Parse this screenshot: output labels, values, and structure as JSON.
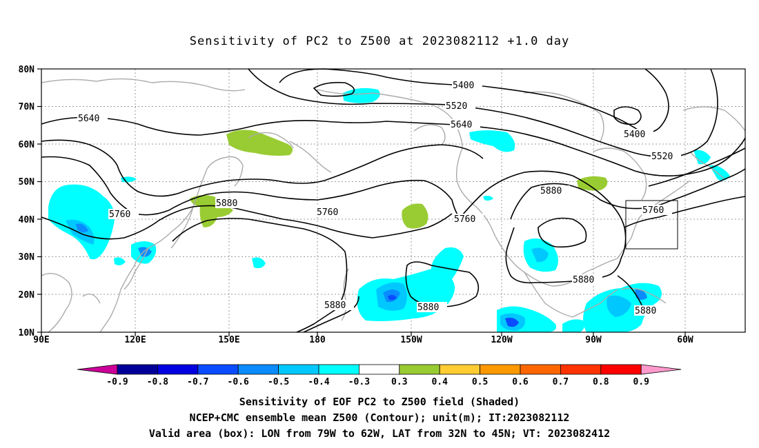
{
  "title": "Sensitivity of PC2 to Z500 at 2023082112 +1.0 day",
  "axes": {
    "lat_labels": [
      "80N",
      "70N",
      "60N",
      "50N",
      "40N",
      "30N",
      "20N",
      "10N"
    ],
    "lon_labels": [
      "90E",
      "120E",
      "150E",
      "180",
      "150W",
      "120W",
      "90W",
      "60W"
    ]
  },
  "contour_labels": [
    "5400",
    "5520",
    "5640",
    "5400",
    "5520",
    "5640",
    "5760",
    "5880",
    "5760",
    "5760",
    "5880",
    "5760",
    "5880",
    "5880",
    "5880",
    "5880"
  ],
  "colorbar": {
    "labels": [
      "-0.9",
      "-0.8",
      "-0.7",
      "-0.6",
      "-0.5",
      "-0.4",
      "-0.3",
      "0.3",
      "0.4",
      "0.5",
      "0.6",
      "0.7",
      "0.8",
      "0.9"
    ],
    "colors": [
      "#cc0099",
      "#000099",
      "#0000e0",
      "#0a4cff",
      "#0a8cff",
      "#00c8ff",
      "#00ffff",
      "#ffffff",
      "#99cc33",
      "#ffcc33",
      "#ff9900",
      "#ff6600",
      "#ff3300",
      "#ff0000",
      "#ff99cc"
    ]
  },
  "captions": [
    "Sensitivity of EOF PC2 to Z500 field (Shaded)",
    "NCEP+CMC ensemble mean Z500 (Contour); unit(m); IT:2023082112",
    "Valid area (box): LON from 79W to 62W, LAT from 32N to 45N; VT: 2023082412"
  ]
}
